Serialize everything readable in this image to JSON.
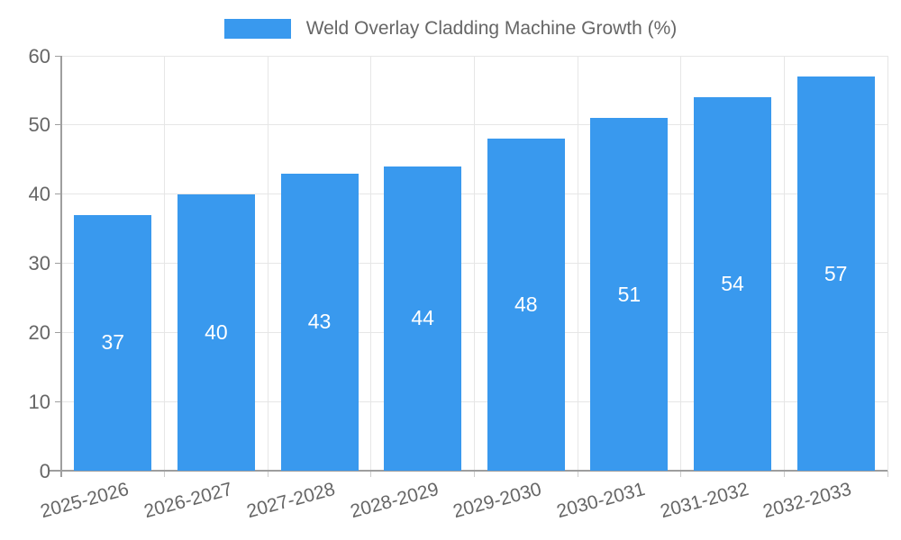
{
  "chart_data": {
    "type": "bar",
    "title": "Weld Overlay Cladding Machine Growth (%)",
    "categories": [
      "2025-2026",
      "2026-2027",
      "2027-2028",
      "2028-2029",
      "2029-2030",
      "2030-2031",
      "2031-2032",
      "2032-2033"
    ],
    "values": [
      37,
      40,
      43,
      44,
      48,
      51,
      54,
      57
    ],
    "xlabel": "",
    "ylabel": "",
    "ylim": [
      0,
      60
    ],
    "yticks": [
      0,
      10,
      20,
      30,
      40,
      50,
      60
    ],
    "grid": true,
    "legend_position": "top-center",
    "value_labels": "inside-center",
    "colors": {
      "bar": "#3999EE",
      "value_label": "#ffffff",
      "grid": "#e6e6e6",
      "axis": "#9e9e9e",
      "x_tick": "#cccccc",
      "text": "#666666"
    }
  }
}
